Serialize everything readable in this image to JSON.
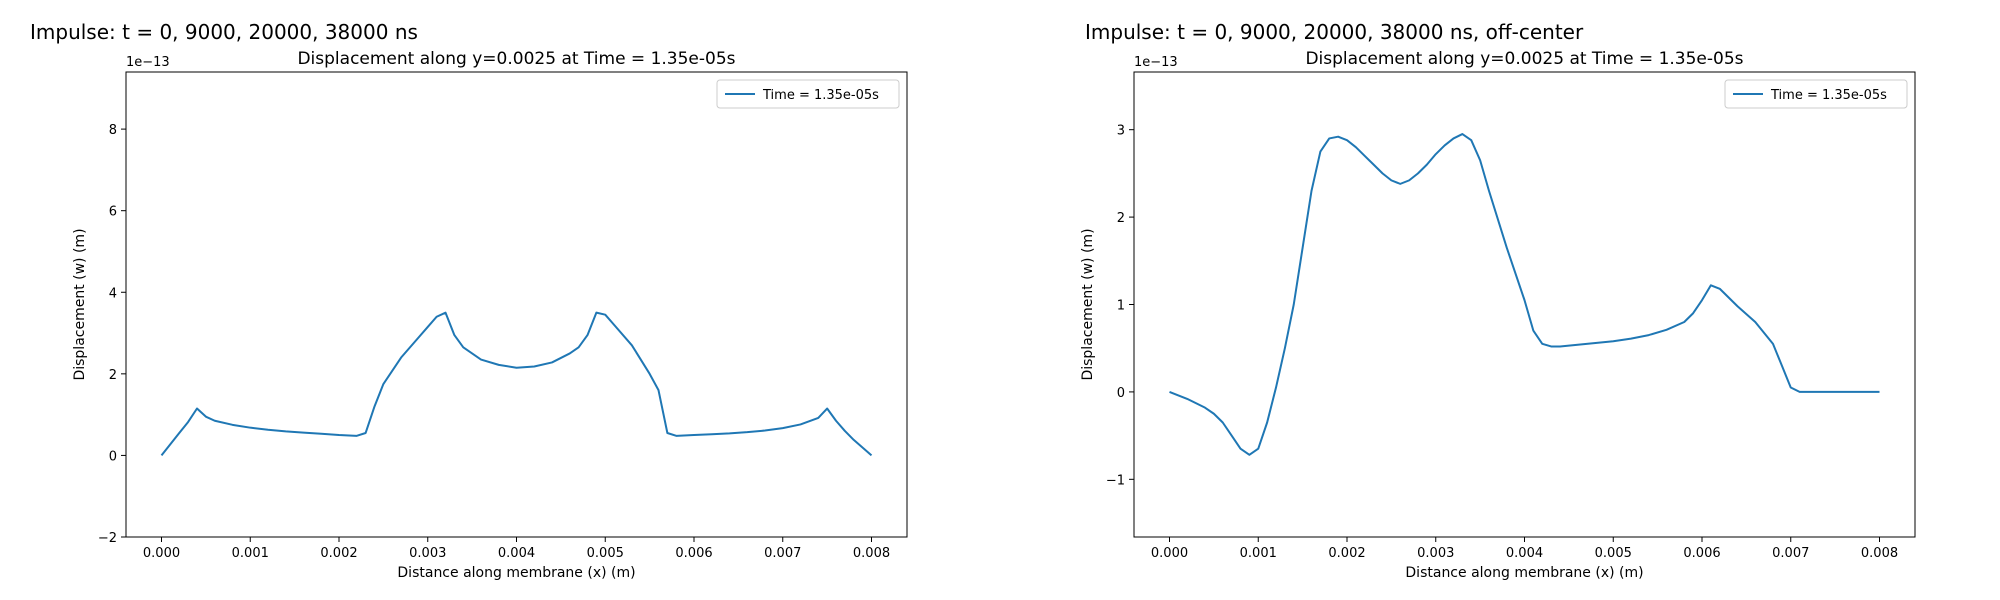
{
  "panels": [
    {
      "heading": "Impulse: t = 0, 9000, 20000, 38000 ns"
    },
    {
      "heading": "Impulse: t = 0, 9000, 20000, 38000 ns, off-center"
    }
  ],
  "colors": {
    "series": "#1f77b4",
    "axes": "#000000",
    "legend_border": "#cccccc"
  },
  "chart_data": [
    {
      "type": "line",
      "title": "Displacement along y=0.0025 at Time = 1.35e-05s",
      "xlabel": "Distance along membrane (x) (m)",
      "ylabel": "Displacement (w) (m)",
      "offset_label": "1e−13",
      "xlim": [
        -0.0004,
        0.0084
      ],
      "ylim": [
        -2,
        9.4
      ],
      "xticks": [
        0.0,
        0.001,
        0.002,
        0.003,
        0.004,
        0.005,
        0.006,
        0.007,
        0.008
      ],
      "xtick_labels": [
        "0.000",
        "0.001",
        "0.002",
        "0.003",
        "0.004",
        "0.005",
        "0.006",
        "0.007",
        "0.008"
      ],
      "yticks": [
        -2,
        0,
        2,
        4,
        6,
        8
      ],
      "ytick_labels": [
        "−2",
        "0",
        "2",
        "4",
        "6",
        "8"
      ],
      "grid": false,
      "legend_position": "upper right",
      "series": [
        {
          "name": "Time = 1.35e-05s",
          "x": [
            0.0,
            0.0002,
            0.0003,
            0.0004,
            0.0005,
            0.0006,
            0.0008,
            0.001,
            0.0012,
            0.0014,
            0.0016,
            0.0018,
            0.002,
            0.0022,
            0.0023,
            0.0024,
            0.0025,
            0.0027,
            0.0029,
            0.003,
            0.0031,
            0.0032,
            0.0033,
            0.0034,
            0.0036,
            0.0038,
            0.004,
            0.0042,
            0.0044,
            0.0046,
            0.0047,
            0.0048,
            0.0049,
            0.005,
            0.0051,
            0.0053,
            0.0055,
            0.0056,
            0.0057,
            0.0058,
            0.006,
            0.0062,
            0.0064,
            0.0066,
            0.0068,
            0.007,
            0.0072,
            0.0074,
            0.0075,
            0.0076,
            0.0077,
            0.0078,
            0.008
          ],
          "y": [
            0.0,
            0.55,
            0.82,
            1.15,
            0.95,
            0.85,
            0.75,
            0.68,
            0.63,
            0.59,
            0.56,
            0.53,
            0.5,
            0.48,
            0.55,
            1.2,
            1.75,
            2.4,
            2.9,
            3.15,
            3.4,
            3.5,
            2.95,
            2.65,
            2.35,
            2.22,
            2.15,
            2.18,
            2.28,
            2.5,
            2.65,
            2.95,
            3.5,
            3.45,
            3.2,
            2.7,
            2.0,
            1.6,
            0.55,
            0.48,
            0.5,
            0.52,
            0.54,
            0.57,
            0.61,
            0.67,
            0.76,
            0.92,
            1.15,
            0.85,
            0.6,
            0.38,
            0.0
          ]
        }
      ]
    },
    {
      "type": "line",
      "title": "Displacement along y=0.0025 at Time = 1.35e-05s",
      "xlabel": "Distance along membrane (x) (m)",
      "ylabel": "Displacement (w) (m)",
      "offset_label": "1e−13",
      "xlim": [
        -0.0004,
        0.0084
      ],
      "ylim": [
        -1.66,
        3.66
      ],
      "xticks": [
        0.0,
        0.001,
        0.002,
        0.003,
        0.004,
        0.005,
        0.006,
        0.007,
        0.008
      ],
      "xtick_labels": [
        "0.000",
        "0.001",
        "0.002",
        "0.003",
        "0.004",
        "0.005",
        "0.006",
        "0.007",
        "0.008"
      ],
      "yticks": [
        -1,
        0,
        1,
        2,
        3
      ],
      "ytick_labels": [
        "−1",
        "0",
        "1",
        "2",
        "3"
      ],
      "grid": false,
      "legend_position": "upper right",
      "series": [
        {
          "name": "Time = 1.35e-05s",
          "x": [
            0.0,
            0.0002,
            0.0004,
            0.0005,
            0.0006,
            0.0007,
            0.0008,
            0.0009,
            0.001,
            0.0011,
            0.0012,
            0.0013,
            0.0014,
            0.0015,
            0.0016,
            0.0017,
            0.0018,
            0.0019,
            0.002,
            0.0021,
            0.0022,
            0.0023,
            0.0024,
            0.0025,
            0.0026,
            0.0027,
            0.0028,
            0.0029,
            0.003,
            0.0031,
            0.0032,
            0.0033,
            0.0034,
            0.0035,
            0.0036,
            0.0038,
            0.004,
            0.0041,
            0.0042,
            0.0043,
            0.0044,
            0.0046,
            0.0048,
            0.005,
            0.0052,
            0.0054,
            0.0056,
            0.0058,
            0.0059,
            0.006,
            0.0061,
            0.0062,
            0.0063,
            0.0064,
            0.0066,
            0.0068,
            0.0069,
            0.007,
            0.0071,
            0.0072,
            0.0074,
            0.0076,
            0.0078,
            0.008
          ],
          "y": [
            0.0,
            -0.08,
            -0.18,
            -0.25,
            -0.35,
            -0.5,
            -0.65,
            -0.72,
            -0.65,
            -0.35,
            0.05,
            0.5,
            1.0,
            1.65,
            2.3,
            2.75,
            2.9,
            2.92,
            2.88,
            2.8,
            2.7,
            2.6,
            2.5,
            2.42,
            2.38,
            2.42,
            2.5,
            2.6,
            2.72,
            2.82,
            2.9,
            2.95,
            2.88,
            2.65,
            2.3,
            1.65,
            1.05,
            0.7,
            0.55,
            0.52,
            0.52,
            0.54,
            0.56,
            0.58,
            0.61,
            0.65,
            0.71,
            0.8,
            0.9,
            1.05,
            1.22,
            1.18,
            1.08,
            0.98,
            0.8,
            0.55,
            0.3,
            0.05,
            0.0,
            0.0,
            0.0,
            0.0,
            0.0,
            0.0
          ]
        }
      ]
    }
  ]
}
